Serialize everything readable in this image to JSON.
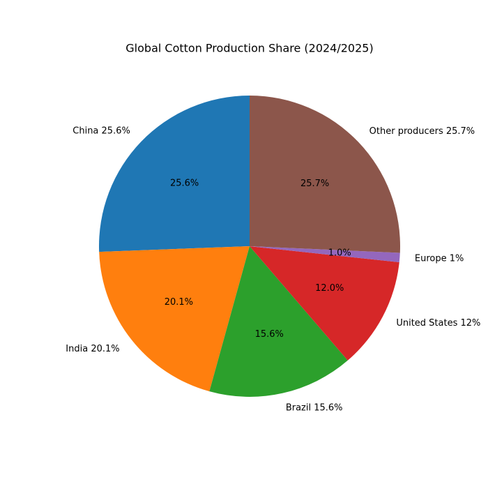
{
  "chart_data": {
    "type": "pie",
    "title": "Global Cotton Production Share (2024/2025)",
    "categories": [
      "China 25.6%",
      "India 20.1%",
      "Brazil 15.6%",
      "United States 12%",
      "Europe 1%",
      "Other producers 25.7%"
    ],
    "values": [
      25.6,
      20.1,
      15.6,
      12,
      1,
      25.7
    ],
    "value_labels": [
      "25.6%",
      "20.1%",
      "15.6%",
      "12.0%",
      "1.0%",
      "25.7%"
    ],
    "colors": [
      "#1f77b4",
      "#ff7f0e",
      "#2ca02c",
      "#d62728",
      "#9467bd",
      "#8c564b"
    ]
  }
}
